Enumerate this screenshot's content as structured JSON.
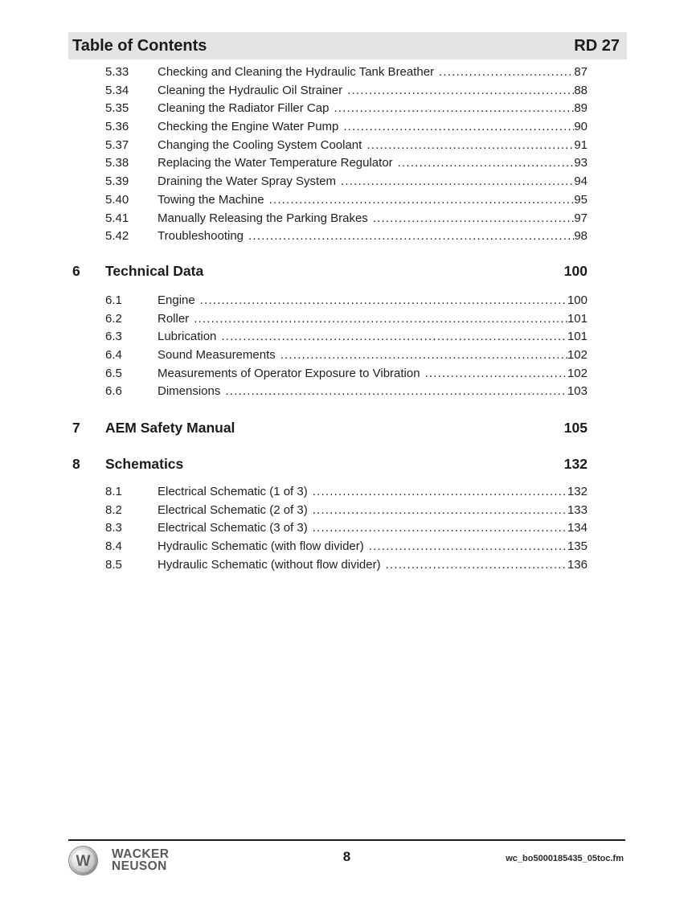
{
  "header": {
    "title": "Table of Contents",
    "model": "RD 27"
  },
  "toc": {
    "section5_entries": [
      {
        "num": "5.33",
        "title": "Checking and Cleaning the Hydraulic Tank Breather",
        "page": "87"
      },
      {
        "num": "5.34",
        "title": "Cleaning the Hydraulic Oil Strainer",
        "page": "88"
      },
      {
        "num": "5.35",
        "title": "Cleaning the Radiator Filler Cap",
        "page": "89"
      },
      {
        "num": "5.36",
        "title": "Checking the Engine Water Pump",
        "page": "90"
      },
      {
        "num": "5.37",
        "title": "Changing the Cooling System Coolant",
        "page": "91"
      },
      {
        "num": "5.38",
        "title": "Replacing the Water Temperature Regulator",
        "page": "93"
      },
      {
        "num": "5.39",
        "title": "Draining the Water Spray System",
        "page": "94"
      },
      {
        "num": "5.40",
        "title": "Towing the Machine",
        "page": "95"
      },
      {
        "num": "5.41",
        "title": "Manually Releasing the Parking Brakes",
        "page": "97"
      },
      {
        "num": "5.42",
        "title": "Troubleshooting",
        "page": "98"
      }
    ],
    "section6": {
      "num": "6",
      "title": "Technical Data",
      "page": "100"
    },
    "section6_entries": [
      {
        "num": "6.1",
        "title": "Engine",
        "page": "100"
      },
      {
        "num": "6.2",
        "title": "Roller",
        "page": "101"
      },
      {
        "num": "6.3",
        "title": "Lubrication",
        "page": "101"
      },
      {
        "num": "6.4",
        "title": "Sound Measurements",
        "page": "102"
      },
      {
        "num": "6.5",
        "title": "Measurements of Operator Exposure to Vibration",
        "page": "102"
      },
      {
        "num": "6.6",
        "title": "Dimensions",
        "page": "103"
      }
    ],
    "section7": {
      "num": "7",
      "title": "AEM Safety Manual",
      "page": "105"
    },
    "section8": {
      "num": "8",
      "title": "Schematics",
      "page": "132"
    },
    "section8_entries": [
      {
        "num": "8.1",
        "title": "Electrical Schematic (1 of 3)",
        "page": "132"
      },
      {
        "num": "8.2",
        "title": "Electrical Schematic (2 of 3)",
        "page": "133"
      },
      {
        "num": "8.3",
        "title": "Electrical Schematic (3 of 3)",
        "page": "134"
      },
      {
        "num": "8.4",
        "title": "Hydraulic Schematic (with flow divider)",
        "page": "135"
      },
      {
        "num": "8.5",
        "title": "Hydraulic Schematic (without flow divider)",
        "page": "136"
      }
    ]
  },
  "footer": {
    "logo_letter": "W",
    "brand_line1": "WACKER",
    "brand_line2": "NEUSON",
    "page_number": "8",
    "file_name": "wc_bo5000185435_05toc.fm"
  },
  "colors": {
    "header_bar_bg": "#e3e3e3",
    "text": "#1f1f1f",
    "brand_gray": "#58595b"
  }
}
